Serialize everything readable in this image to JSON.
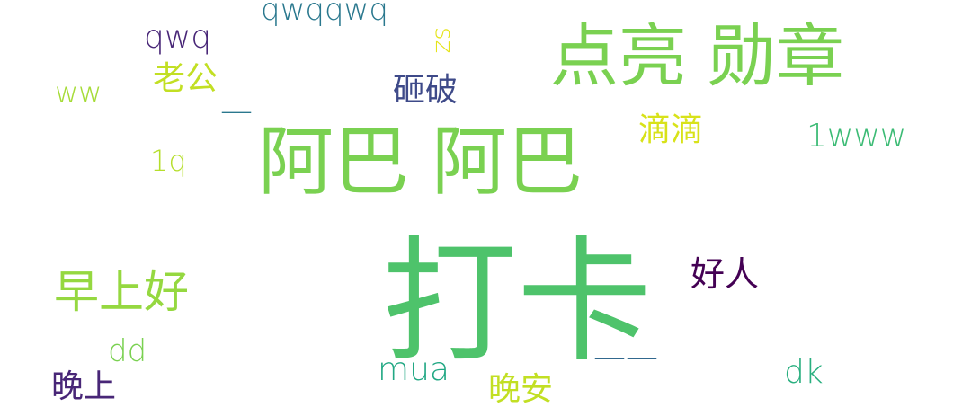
{
  "words": {
    "daka": {
      "text": "打卡",
      "color": "#4ec36b"
    },
    "aba1": {
      "text": "阿巴",
      "color": "#7ad151"
    },
    "aba2": {
      "text": "阿巴",
      "color": "#7ad151"
    },
    "dianliang": {
      "text": "点亮",
      "color": "#7ad151"
    },
    "xunzhang": {
      "text": "勋章",
      "color": "#7ad151"
    },
    "zaoshang": {
      "text": "早上好",
      "color": "#95d840"
    },
    "haoren": {
      "text": "好人",
      "color": "#440154"
    },
    "zapo": {
      "text": "砸破",
      "color": "#3e4a89"
    },
    "laogong": {
      "text": "老公",
      "color": "#c2df23"
    },
    "didi": {
      "text": "滴滴",
      "color": "#d8e219"
    },
    "wanan": {
      "text": "晚安",
      "color": "#c2df23"
    },
    "wanshang": {
      "text": "晚上",
      "color": "#482677"
    },
    "qwqqwq": {
      "text": "qwqqwq",
      "color": "#2a788e"
    },
    "qwq": {
      "text": "qwq",
      "color": "#482677"
    },
    "1www": {
      "text": "1www",
      "color": "#3cbb75"
    },
    "ww": {
      "text": "ww",
      "color": "#a5db36"
    },
    "1q": {
      "text": "1q",
      "color": "#b5de2b"
    },
    "dd": {
      "text": "dd",
      "color": "#7ad151"
    },
    "mua": {
      "text": "mua",
      "color": "#22a884"
    },
    "dk": {
      "text": "dk",
      "color": "#29af7f"
    },
    "sz": {
      "text": "sz",
      "color": "#e5e419"
    },
    "dash1": {
      "text": "—",
      "color": "#2a788e"
    },
    "dash2": {
      "text": "——",
      "color": "#31688e"
    }
  }
}
